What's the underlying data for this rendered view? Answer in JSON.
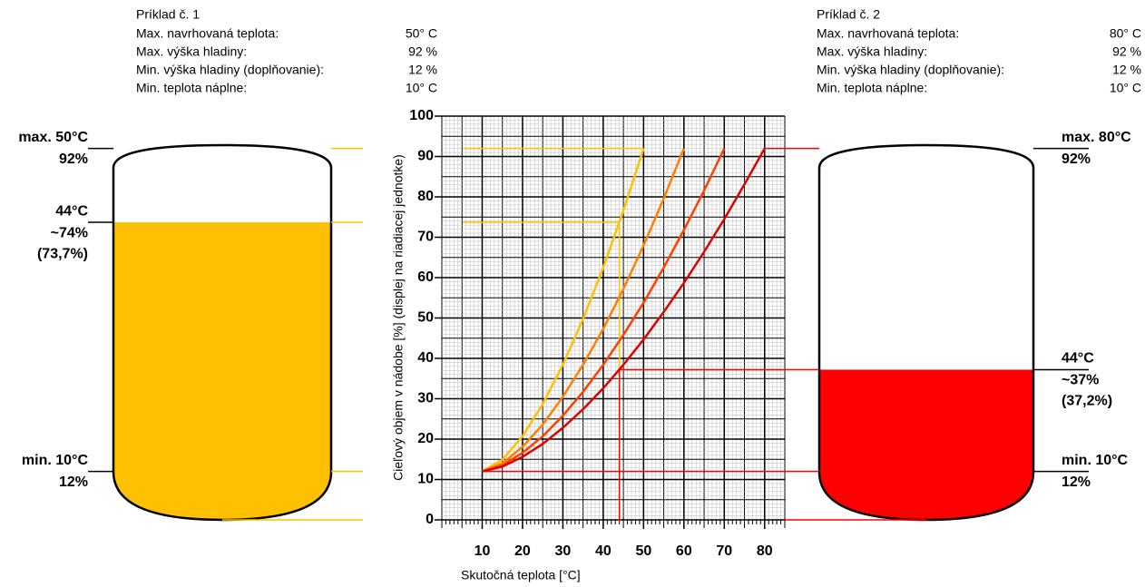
{
  "examples": [
    {
      "title": "Príklad č. 1",
      "rows": [
        [
          "Max. navrhovaná teplota:",
          "50° C"
        ],
        [
          "Max. výška hladiny:",
          "92 %"
        ],
        [
          "Min. výška hladiny (doplňovanie):",
          "12 %"
        ],
        [
          "Min. teplota náplne:",
          "10° C"
        ]
      ]
    },
    {
      "title": "Príklad č. 2",
      "rows": [
        [
          "Max. navrhovaná teplota:",
          "80° C"
        ],
        [
          "Max. výška hladiny:",
          "92 %"
        ],
        [
          "Min. výška hladiny (doplňovanie):",
          "12 %"
        ],
        [
          "Min. teplota náplne:",
          "10° C"
        ]
      ]
    }
  ],
  "tanks": [
    {
      "color": "#ffc000",
      "max_temp": "max. 50°C",
      "max_level": {
        "value": 92,
        "label": "92%"
      },
      "current_temp": {
        "value": 44,
        "label": "44°C"
      },
      "current_level": {
        "value": 73.7,
        "label": "~74%",
        "exact_label": "(73,7%)"
      },
      "min_temp": "min. 10°C",
      "min_level": {
        "value": 12,
        "label": "12%"
      }
    },
    {
      "color": "#ff0000",
      "max_temp": "max. 80°C",
      "max_level": {
        "value": 92,
        "label": "92%"
      },
      "current_temp": {
        "value": 44,
        "label": "44°C"
      },
      "current_level": {
        "value": 37.2,
        "label": "~37%",
        "exact_label": "(37,2%)"
      },
      "min_temp": "min. 10°C",
      "min_level": {
        "value": 12,
        "label": "12%"
      }
    }
  ],
  "chart_data": {
    "type": "line",
    "x_label": "Skutočná teplota [°C]",
    "y_label": "Cieľový objem v nádobe [%] (displej na riadiacej jednotke)",
    "xlim": [
      0,
      85
    ],
    "ylim": [
      0,
      100
    ],
    "xticks": [
      10,
      20,
      30,
      40,
      50,
      60,
      70,
      80
    ],
    "yticks": [
      0,
      10,
      20,
      30,
      40,
      50,
      60,
      70,
      80,
      90,
      100
    ],
    "grid": {
      "major": 5,
      "minor": 1
    },
    "series": [
      {
        "color": "#ffc000",
        "x": [
          10,
          15,
          20,
          25,
          30,
          35,
          40,
          45,
          50
        ],
        "values": [
          12,
          14.9,
          20.7,
          28.7,
          38.4,
          49.7,
          62.5,
          76.6,
          92
        ]
      },
      {
        "color": "#ff8000",
        "x": [
          10,
          15,
          20,
          25,
          30,
          35,
          40,
          45,
          50,
          55,
          60
        ],
        "values": [
          12,
          14.0,
          18.1,
          23.6,
          30.5,
          38.4,
          47.3,
          57.2,
          68.0,
          79.6,
          92
        ]
      },
      {
        "color": "#ff4000",
        "x": [
          10,
          15,
          20,
          25,
          30,
          35,
          40,
          45,
          50,
          55,
          60,
          65,
          70
        ],
        "values": [
          12,
          13.5,
          16.6,
          20.7,
          25.8,
          31.7,
          38.4,
          45.8,
          53.8,
          62.5,
          71.8,
          81.6,
          92
        ]
      },
      {
        "color": "#e00000",
        "x": [
          10,
          15,
          20,
          25,
          30,
          35,
          40,
          45,
          50,
          55,
          60,
          65,
          70,
          75,
          80
        ],
        "values": [
          12,
          13.2,
          15.6,
          18.8,
          22.8,
          27.4,
          32.6,
          38.4,
          44.7,
          51.5,
          58.7,
          66.4,
          74.5,
          83.1,
          92
        ]
      }
    ]
  }
}
